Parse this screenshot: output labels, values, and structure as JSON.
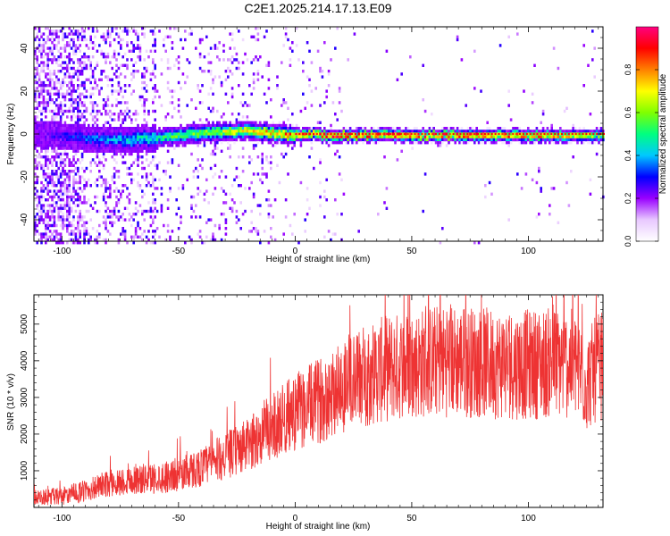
{
  "title": "C2E1.2025.214.17.13.E09",
  "chart_data": [
    {
      "type": "heatmap",
      "xlabel": "Height of straight line (km)",
      "ylabel": "Frequency (Hz)",
      "xlim": [
        -112,
        132
      ],
      "ylim": [
        -50,
        50
      ],
      "x_ticks": [
        -100,
        -50,
        0,
        50,
        100
      ],
      "y_ticks": [
        -40,
        -20,
        0,
        20,
        40
      ],
      "colorbar": {
        "label": "Normalized spectral amplitude",
        "range": [
          0,
          1
        ],
        "ticks": [
          0.0,
          0.2,
          0.4,
          0.6,
          0.8
        ],
        "tick_labels": [
          "0.0",
          "0.2",
          "0.4",
          "0.6",
          "0.8"
        ],
        "colors": [
          "#ffffff",
          "#e8c8ff",
          "#9900ff",
          "#0000ff",
          "#00c8ff",
          "#00ff80",
          "#80ff00",
          "#ffff00",
          "#ff8000",
          "#ff0000",
          "#ff0080"
        ]
      },
      "ridge": {
        "description_x": [
          -112,
          -100,
          -90,
          -80,
          -70,
          -60,
          -50,
          -40,
          -30,
          -20,
          -10,
          0,
          5,
          10,
          20,
          50,
          100,
          132
        ],
        "frequency_hz": [
          0,
          0,
          -1,
          -2,
          -2,
          -1,
          0,
          1,
          2,
          2,
          1,
          0,
          1,
          0,
          0,
          0,
          0,
          0
        ],
        "amplitude": [
          0.2,
          0.3,
          0.35,
          0.4,
          0.45,
          0.5,
          0.6,
          0.65,
          0.7,
          0.75,
          0.8,
          0.85,
          0.85,
          0.9,
          0.9,
          0.9,
          0.85,
          0.7
        ]
      }
    },
    {
      "type": "line",
      "xlabel": "Height of straight line (km)",
      "ylabel": "SNR (10 * v/v)",
      "xlim": [
        -112,
        132
      ],
      "ylim": [
        0,
        5800
      ],
      "x_ticks": [
        -100,
        -50,
        0,
        50,
        100
      ],
      "y_ticks": [
        1000,
        2000,
        3000,
        4000,
        5000
      ],
      "color": "#ee3333",
      "trend": {
        "x": [
          -112,
          -100,
          -90,
          -80,
          -70,
          -60,
          -50,
          -40,
          -30,
          -20,
          -10,
          0,
          10,
          20,
          30,
          40,
          50,
          60,
          70,
          80,
          90,
          100,
          110,
          120,
          125,
          128,
          132
        ],
        "y": [
          250,
          300,
          450,
          650,
          750,
          800,
          900,
          1100,
          1400,
          1700,
          2200,
          2600,
          2900,
          3300,
          3600,
          3800,
          3900,
          4000,
          4000,
          3950,
          3900,
          3900,
          3950,
          3900,
          3400,
          3700,
          3900
        ]
      }
    }
  ]
}
